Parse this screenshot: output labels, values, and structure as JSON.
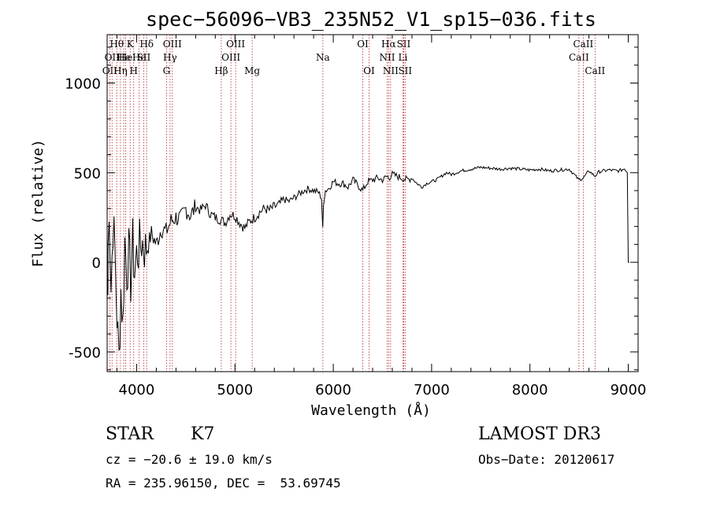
{
  "chart_data": {
    "type": "line",
    "title": "spec−56096−VB3_235N52_V1_sp15−036.fits",
    "xlabel": "Wavelength (Å)",
    "ylabel": "Flux (relative)",
    "xlim": [
      3700,
      9100
    ],
    "ylim": [
      -610,
      1270
    ],
    "x_ticks": [
      4000,
      5000,
      6000,
      7000,
      8000,
      9000
    ],
    "y_ticks": [
      -500,
      0,
      500,
      1000
    ],
    "x_minor_step": 200,
    "y_minor_step": 100,
    "line_color": "#000000",
    "marker_color": "#b22222",
    "series": [
      {
        "x": [
          3700,
          3720,
          3740,
          3760,
          3780,
          3800,
          3820,
          3840,
          3860,
          3880,
          3900,
          3920,
          3940,
          3960,
          3980,
          4000,
          4050,
          4100,
          4150,
          4200,
          4250,
          4300,
          4350,
          4400,
          4450,
          4500,
          4550,
          4600,
          4650,
          4700,
          4750,
          4800,
          4850,
          4900,
          4950,
          5000,
          5050,
          5100,
          5150,
          5200,
          5250,
          5300,
          5350,
          5400,
          5450,
          5500,
          5550,
          5600,
          5650,
          5700,
          5750,
          5800,
          5850,
          5880,
          5893,
          5900,
          5920,
          5950,
          6000,
          6050,
          6100,
          6150,
          6200,
          6250,
          6300,
          6350,
          6400,
          6450,
          6500,
          6550,
          6563,
          6600,
          6650,
          6700,
          6750,
          6800,
          6850,
          6900,
          6950,
          7000,
          7050,
          7100,
          7150,
          7200,
          7300,
          7400,
          7500,
          7600,
          7700,
          7800,
          7900,
          8000,
          8100,
          8200,
          8300,
          8400,
          8498,
          8542,
          8600,
          8662,
          8700,
          8800,
          8900,
          8960,
          8990,
          9000,
          9010
        ],
        "y": [
          -180,
          350,
          -150,
          220,
          50,
          -300,
          -540,
          -150,
          -350,
          120,
          -50,
          50,
          -100,
          100,
          -60,
          40,
          120,
          60,
          160,
          100,
          190,
          170,
          230,
          250,
          240,
          300,
          260,
          310,
          290,
          320,
          270,
          250,
          240,
          220,
          270,
          260,
          220,
          190,
          230,
          250,
          280,
          300,
          290,
          310,
          320,
          350,
          340,
          360,
          380,
          400,
          410,
          400,
          390,
          360,
          180,
          330,
          400,
          410,
          450,
          440,
          440,
          420,
          460,
          430,
          400,
          450,
          460,
          470,
          460,
          480,
          470,
          490,
          480,
          470,
          460,
          470,
          440,
          420,
          440,
          450,
          460,
          480,
          500,
          490,
          510,
          520,
          530,
          525,
          520,
          525,
          520,
          515,
          520,
          510,
          515,
          520,
          460,
          470,
          510,
          480,
          505,
          515,
          510,
          520,
          500,
          0,
          0
        ]
      }
    ],
    "lines": [
      {
        "w": 3727,
        "label": "OII",
        "row": 2
      },
      {
        "w": 3750,
        "label": "OII",
        "row": 1
      },
      {
        "w": 3798,
        "label": "Hθ",
        "row": 0
      },
      {
        "w": 3835,
        "label": "Hη",
        "row": 2
      },
      {
        "w": 3869,
        "label": "He",
        "row": 1
      },
      {
        "w": 3889,
        "label": "He",
        "row": 1
      },
      {
        "w": 3934,
        "label": "K",
        "row": 0
      },
      {
        "w": 3970,
        "label": "H",
        "row": 2
      },
      {
        "w": 4026,
        "label": "He",
        "row": 1
      },
      {
        "w": 4072,
        "label": "SII",
        "row": 1
      },
      {
        "w": 4102,
        "label": "Hδ",
        "row": 0
      },
      {
        "w": 4304,
        "label": "G",
        "row": 2
      },
      {
        "w": 4340,
        "label": "Hγ",
        "row": 1
      },
      {
        "w": 4363,
        "label": "OIII",
        "row": 0
      },
      {
        "w": 4861,
        "label": "Hβ",
        "row": 2
      },
      {
        "w": 4959,
        "label": "OIII",
        "row": 1
      },
      {
        "w": 5007,
        "label": "OIII",
        "row": 0
      },
      {
        "w": 5175,
        "label": "Mg",
        "row": 2
      },
      {
        "w": 5894,
        "label": "Na",
        "row": 1
      },
      {
        "w": 6300,
        "label": "OI",
        "row": 0
      },
      {
        "w": 6364,
        "label": "OI",
        "row": 2
      },
      {
        "w": 6548,
        "label": "NII",
        "row": 1
      },
      {
        "w": 6563,
        "label": "Hα",
        "row": 0
      },
      {
        "w": 6583,
        "label": "NII",
        "row": 2
      },
      {
        "w": 6708,
        "label": "Li",
        "row": 1
      },
      {
        "w": 6716,
        "label": "SII",
        "row": 0
      },
      {
        "w": 6731,
        "label": "SII",
        "row": 2
      },
      {
        "w": 8498,
        "label": "CaII",
        "row": 1
      },
      {
        "w": 8542,
        "label": "CaII",
        "row": 0
      },
      {
        "w": 8662,
        "label": "CaII",
        "row": 2
      }
    ]
  },
  "info": {
    "class": "STAR",
    "subclass": "K7",
    "survey": "LAMOST DR3",
    "cz": "cz = −20.6 ± 19.0 km/s",
    "obs_date": "Obs−Date: 20120617",
    "radec": "RA = 235.96150, DEC =  53.69745"
  }
}
